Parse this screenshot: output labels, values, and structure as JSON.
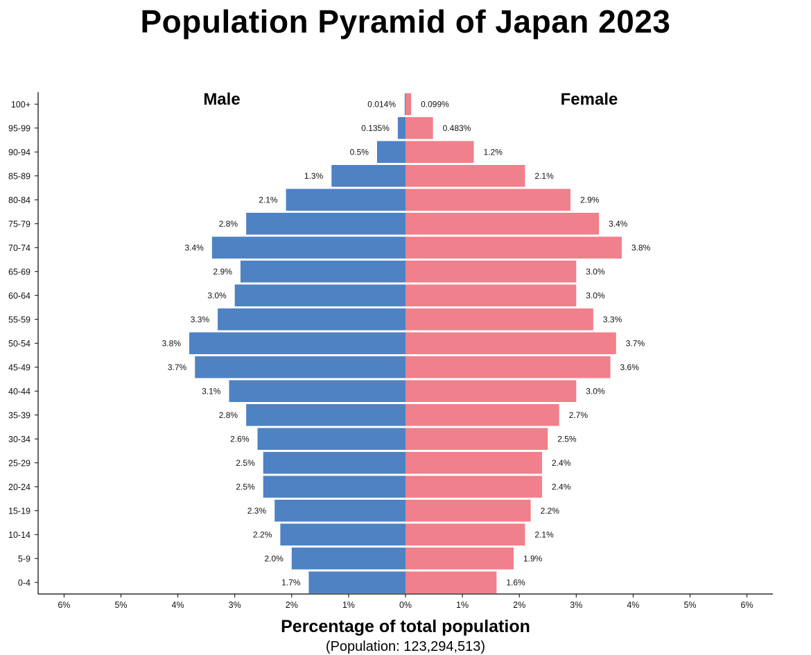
{
  "chart_data": {
    "type": "bar",
    "orientation": "horizontal-pyramid",
    "title": "Population Pyramid of Japan 2023",
    "xlabel": "Percentage of total population",
    "subtitle": "(Population: 123,294,513)",
    "xlim": [
      -6,
      6
    ],
    "x_ticks": [
      "6%",
      "5%",
      "4%",
      "3%",
      "2%",
      "1%",
      "0%",
      "1%",
      "2%",
      "3%",
      "4%",
      "5%",
      "6%"
    ],
    "categories": [
      "100+",
      "95-99",
      "90-94",
      "85-89",
      "80-84",
      "75-79",
      "70-74",
      "65-69",
      "60-64",
      "55-59",
      "50-54",
      "45-49",
      "40-44",
      "35-39",
      "30-34",
      "25-29",
      "20-24",
      "15-19",
      "10-14",
      "5-9",
      "0-4"
    ],
    "series": [
      {
        "name": "Male",
        "color": "#4f82c3",
        "values": [
          0.014,
          0.135,
          0.5,
          1.3,
          2.1,
          2.8,
          3.4,
          2.9,
          3.0,
          3.3,
          3.8,
          3.7,
          3.1,
          2.8,
          2.6,
          2.5,
          2.5,
          2.3,
          2.2,
          2.0,
          1.7
        ],
        "labels": [
          "0.014%",
          "0.135%",
          "0.5%",
          "1.3%",
          "2.1%",
          "2.8%",
          "3.4%",
          "2.9%",
          "3.0%",
          "3.3%",
          "3.8%",
          "3.7%",
          "3.1%",
          "2.8%",
          "2.6%",
          "2.5%",
          "2.5%",
          "2.3%",
          "2.2%",
          "2.0%",
          "1.7%"
        ]
      },
      {
        "name": "Female",
        "color": "#f0808b",
        "values": [
          0.099,
          0.483,
          1.2,
          2.1,
          2.9,
          3.4,
          3.8,
          3.0,
          3.0,
          3.3,
          3.7,
          3.6,
          3.0,
          2.7,
          2.5,
          2.4,
          2.4,
          2.2,
          2.1,
          1.9,
          1.6
        ],
        "labels": [
          "0.099%",
          "0.483%",
          "1.2%",
          "2.1%",
          "2.9%",
          "3.4%",
          "3.8%",
          "3.0%",
          "3.0%",
          "3.3%",
          "3.7%",
          "3.6%",
          "3.0%",
          "2.7%",
          "2.5%",
          "2.4%",
          "2.4%",
          "2.2%",
          "2.1%",
          "1.9%",
          "1.6%"
        ]
      }
    ],
    "grid": false,
    "legend": "none"
  }
}
